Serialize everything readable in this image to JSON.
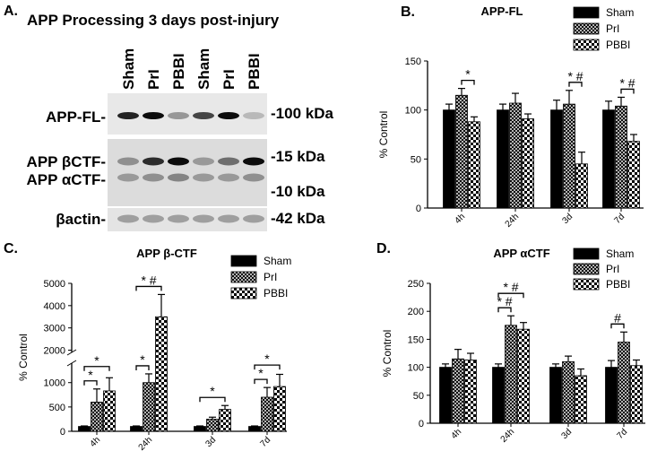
{
  "blot": {
    "letter": "A.",
    "title": "APP Processing 3 days post-injury",
    "lanes": [
      "Sham",
      "PrI",
      "PBBI",
      "Sham",
      "PrI",
      "PBBI"
    ],
    "rows": [
      "APP-FL-",
      "APP βCTF-",
      "APP αCTF-",
      "βactin-"
    ],
    "markers": [
      "-100 kDa",
      "-15 kDa",
      "-10 kDa",
      "-42 kDa"
    ]
  },
  "chart_data": [
    {
      "type": "bar",
      "letter": "B.",
      "title": "APP-FL",
      "y_label": "% Control",
      "categories": [
        "4h",
        "24h",
        "3d",
        "7d"
      ],
      "series": [
        {
          "name": "Sham",
          "color": "#000000",
          "pattern": "solid",
          "values": [
            100,
            100,
            100,
            100
          ],
          "errors": [
            6,
            6,
            10,
            9
          ]
        },
        {
          "name": "PrI",
          "color": "#000000",
          "pattern": "crosshatch",
          "values": [
            115,
            107,
            106,
            104
          ],
          "errors": [
            7,
            10,
            14,
            9
          ]
        },
        {
          "name": "PBBI",
          "color": "#000000",
          "pattern": "checker",
          "values": [
            88,
            91,
            45,
            68
          ],
          "errors": [
            5,
            5,
            12,
            7
          ]
        }
      ],
      "ylim": [
        0,
        150
      ],
      "yticks": [
        0,
        50,
        100,
        150
      ],
      "annotations": [
        "*",
        "* #",
        "* #"
      ]
    },
    {
      "type": "bar",
      "letter": "C.",
      "title": "APP β-CTF",
      "y_label": "% Control",
      "categories": [
        "4h",
        "24h",
        "3d",
        "7d"
      ],
      "series": [
        {
          "name": "Sham",
          "color": "#000000",
          "pattern": "solid",
          "values": [
            100,
            100,
            100,
            100
          ],
          "errors": [
            10,
            10,
            10,
            10
          ]
        },
        {
          "name": "PrI",
          "color": "#000000",
          "pattern": "crosshatch",
          "values": [
            600,
            1000,
            250,
            700
          ],
          "errors": [
            270,
            180,
            40,
            200
          ]
        },
        {
          "name": "PBBI",
          "color": "#000000",
          "pattern": "checker",
          "values": [
            830,
            3500,
            450,
            920
          ],
          "errors": [
            270,
            1000,
            80,
            250
          ]
        }
      ],
      "ylim": [
        0,
        5000
      ],
      "ybreak": [
        1400,
        1900
      ],
      "yticks": [
        0,
        500,
        1000,
        2000,
        3000,
        4000,
        5000
      ],
      "annotations": [
        "*",
        "*",
        "*",
        "* #",
        "*",
        "*",
        "*"
      ]
    },
    {
      "type": "bar",
      "letter": "D.",
      "title": "APP αCTF",
      "y_label": "% Control",
      "categories": [
        "4h",
        "24h",
        "3d",
        "7d"
      ],
      "series": [
        {
          "name": "Sham",
          "color": "#000000",
          "pattern": "solid",
          "values": [
            100,
            100,
            100,
            100
          ],
          "errors": [
            6,
            6,
            6,
            12
          ]
        },
        {
          "name": "PrI",
          "color": "#000000",
          "pattern": "crosshatch",
          "values": [
            115,
            175,
            110,
            145
          ],
          "errors": [
            17,
            17,
            10,
            18
          ]
        },
        {
          "name": "PBBI",
          "color": "#000000",
          "pattern": "checker",
          "values": [
            113,
            168,
            85,
            103
          ],
          "errors": [
            12,
            12,
            12,
            10
          ]
        }
      ],
      "ylim": [
        0,
        250
      ],
      "yticks": [
        0,
        50,
        100,
        150,
        200,
        250
      ],
      "annotations": [
        "* #",
        "* #",
        "#"
      ]
    }
  ]
}
